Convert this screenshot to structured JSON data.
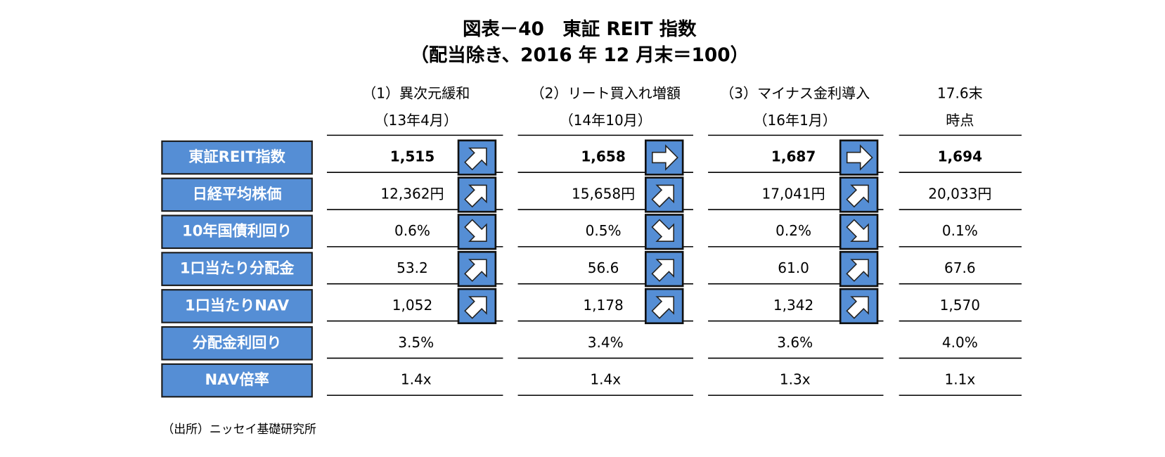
{
  "title": [
    "図表－40　東証 REIT 指数",
    "（配当除き、2016 年 12 月末＝100）"
  ],
  "columns": [
    {
      "label": "（1）異次元緩和",
      "period": "（13年4月）"
    },
    {
      "label": "（2）リート買入れ増額",
      "period": "（14年10月）"
    },
    {
      "label": "（3）マイナス金利導入",
      "period": "（16年1月）"
    },
    {
      "label": "17.6末",
      "period": "時点"
    }
  ],
  "rows": [
    {
      "label": "東証REIT指数",
      "values": [
        "1,515",
        "1,658",
        "1,687",
        "1,694"
      ]
    },
    {
      "label": "日経平均株価",
      "values": [
        "12,362円",
        "15,658円",
        "17,041円",
        "20,033円"
      ]
    },
    {
      "label": "10年国債利回り",
      "values": [
        "0.6%",
        "0.5%",
        "0.2%",
        "0.1%"
      ]
    },
    {
      "label": "1口当たり分配金",
      "values": [
        "53.2",
        "56.6",
        "61.0",
        "67.6"
      ]
    },
    {
      "label": "1口当たりNAV",
      "values": [
        "1,052",
        "1,178",
        "1,342",
        "1,570"
      ]
    },
    {
      "label": "分配金利回り",
      "values": [
        "3.5%",
        "3.4%",
        "3.6%",
        "4.0%"
      ]
    },
    {
      "label": "NAV倍率",
      "values": [
        "1.4x",
        "1.4x",
        "1.3x",
        "1.1x"
      ]
    }
  ],
  "source": "（出所）ニッセイ基礎研究所"
}
